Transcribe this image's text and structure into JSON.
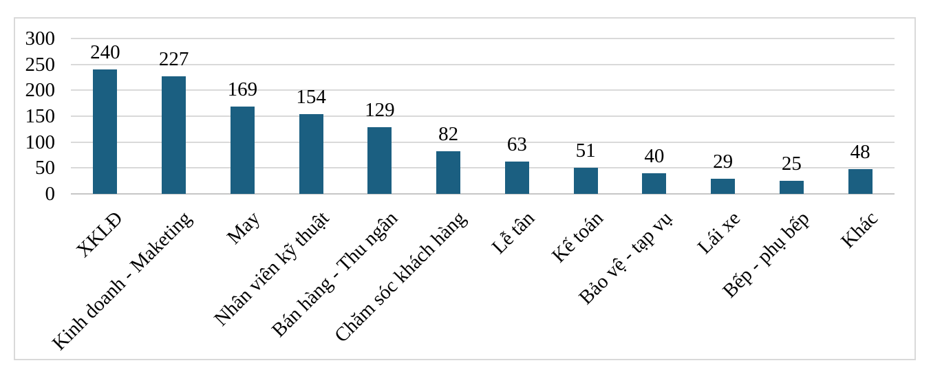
{
  "chart_data": {
    "type": "bar",
    "title": "",
    "xlabel": "",
    "ylabel": "",
    "categories": [
      "XKLĐ",
      "Kinh doanh - Maketing",
      "May",
      "Nhân viên kỹ thuật",
      "Bán hàng - Thu ngân",
      "Chăm sóc khách hàng",
      "Lễ tân",
      "Kế toán",
      "Bảo vệ - tạp vụ",
      "Lái xe",
      "Bếp - phụ bếp",
      "Khác"
    ],
    "values": [
      240,
      227,
      169,
      154,
      129,
      82,
      63,
      51,
      40,
      29,
      25,
      48
    ],
    "data_labels_shown": true,
    "ylim": [
      0,
      300
    ],
    "yticks": [
      0,
      50,
      100,
      150,
      200,
      250,
      300
    ],
    "grid": "horizontal",
    "legend": "none",
    "x_label_rotation_deg": 45,
    "colors": {
      "bar": "#1B5F81",
      "gridline": "#D9D9D9",
      "axis_line": "#C6C6C6",
      "frame_border": "#D9D9D9",
      "text": "#000000",
      "background": "#FFFFFF"
    }
  }
}
